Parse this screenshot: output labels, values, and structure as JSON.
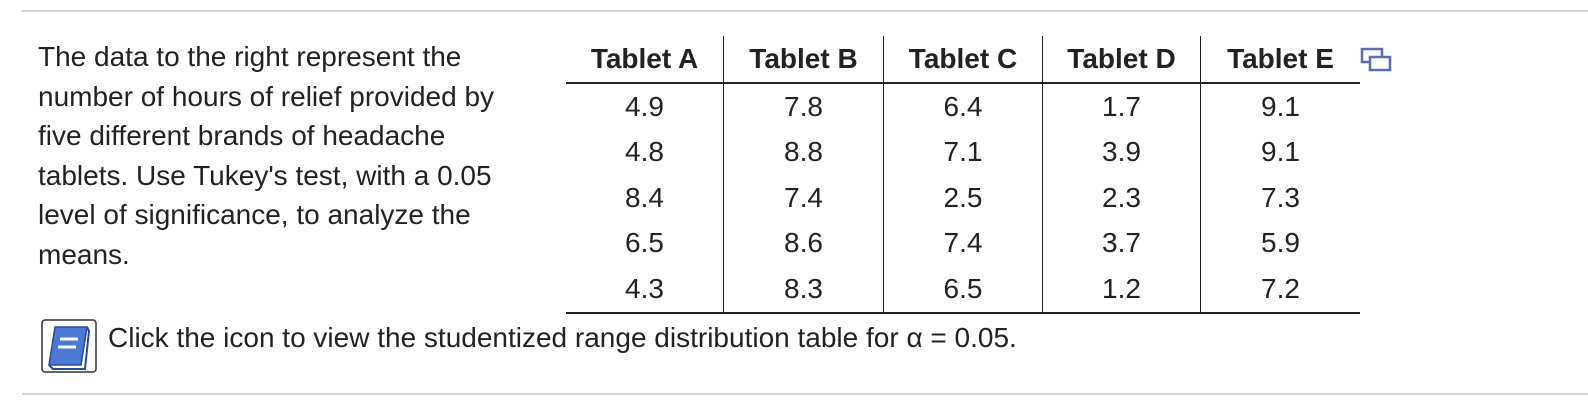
{
  "question": {
    "text": "The data to the right represent the number of hours of relief provided by five different brands of headache tablets. Use Tukey's test, with a 0.05 level of significance, to analyze the means."
  },
  "table": {
    "headers": [
      "Tablet A",
      "Tablet B",
      "Tablet C",
      "Tablet D",
      "Tablet E"
    ],
    "rows": [
      [
        "4.9",
        "7.8",
        "6.4",
        "1.7",
        "9.1"
      ],
      [
        "4.8",
        "8.8",
        "7.1",
        "3.9",
        "9.1"
      ],
      [
        "8.4",
        "7.4",
        "2.5",
        "2.3",
        "7.3"
      ],
      [
        "6.5",
        "8.6",
        "7.4",
        "3.7",
        "5.9"
      ],
      [
        "4.3",
        "8.3",
        "6.5",
        "1.2",
        "7.2"
      ]
    ]
  },
  "link": {
    "text": "Click the icon to view the studentized range distribution table for α = 0.05."
  }
}
